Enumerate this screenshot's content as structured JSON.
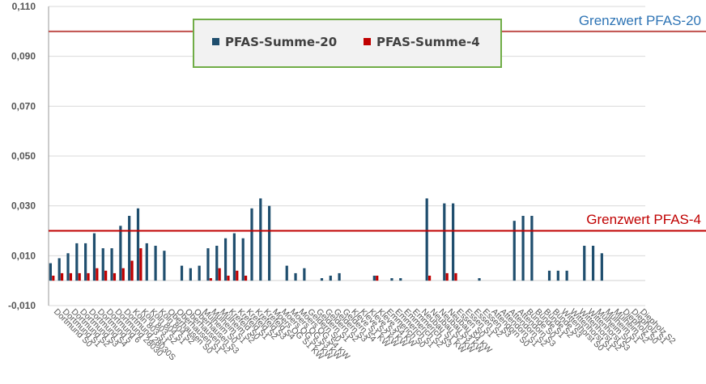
{
  "chart_data": {
    "type": "bar",
    "title": "",
    "xlabel": "",
    "ylabel": "",
    "ylim": [
      -0.01,
      0.11
    ],
    "yticks": [
      "0,110",
      "0,090",
      "0,070",
      "0,050",
      "0,030",
      "0,010",
      "-0,010"
    ],
    "ytick_values": [
      0.11,
      0.09,
      0.07,
      0.05,
      0.03,
      0.01,
      -0.01
    ],
    "grid": "horizontal",
    "legend_position": "top-center",
    "categories": [
      "Dortmund S0",
      "Dortmund S1",
      "Dortmund S2",
      "Dortmund S3",
      "Dortmund S4",
      "Dortmund 5",
      "Dortmund 6",
      "Dortmund 28030",
      "Dortmund 28030S",
      "Köln 803 S1",
      "Köln 803 S2",
      "Köln 804 S1",
      "Köln 804 S2",
      "Oberhausen S0",
      "Oberhausen S1",
      "Oberhausen S2",
      "Oberhausen S3",
      "Mülheim S0",
      "Mülheim S1",
      "Mülheim S2",
      "Krefeld S0",
      "Krefeld S1",
      "Krefeld S2",
      "Krefeld S3",
      "Krefeld S4",
      "Moers OG S1 KW",
      "Moers OG S2 KW",
      "Moers OG S3 KW",
      "Moers OG S4 KW",
      "Geldern S0",
      "Geldern S1",
      "Geldern S2",
      "Geldern S3",
      "Geldern S4",
      "Kleve S1 KW",
      "Kleve S2 KW",
      "Kleve S3 KW",
      "Kleve S4 KW",
      "Emmerich S0",
      "Emmerich S1",
      "Emmerich S2",
      "Emmerich S3",
      "Neubau S1 KW",
      "Neubau S2 KW",
      "Neubau S3 KW",
      "Neubau S4 KW",
      "Essen S0",
      "Essen S1",
      "Essen S2",
      "Essen S3",
      "Attendorn S0",
      "Attendorn S1",
      "Attendorn S2",
      "Attendorn S3",
      "Bünde S0",
      "Bünde S1",
      "Bünde S2",
      "Bünde S3",
      "Wittenhorst S0",
      "Wittenhorst S1",
      "Wittenhorst S2",
      "Wittenhorst S3",
      "Mülheim S0",
      "Mülheim S1",
      "Mülheim S2",
      "Diepholz S0",
      "Diepholz S1",
      "Diepholz S2"
    ],
    "series": [
      {
        "name": "PFAS-Summe-20",
        "color": "#1f4e6e",
        "values": [
          0.007,
          0.009,
          0.011,
          0.015,
          0.015,
          0.019,
          0.013,
          0.013,
          0.022,
          0.026,
          0.029,
          0.015,
          0.014,
          0.012,
          0.0,
          0.006,
          0.005,
          0.006,
          0.013,
          0.014,
          0.017,
          0.019,
          0.017,
          0.029,
          0.033,
          0.03,
          0.0,
          0.006,
          0.003,
          0.005,
          0.0,
          0.001,
          0.002,
          0.003,
          0.0,
          0.0,
          0.0,
          0.002,
          0.0,
          0.001,
          0.001,
          0.0,
          0.0,
          0.033,
          0.0,
          0.031,
          0.031,
          0.0,
          0.0,
          0.001,
          0.0,
          0.0,
          0.0,
          0.024,
          0.026,
          0.026,
          0.0,
          0.004,
          0.004,
          0.004,
          0.0,
          0.014,
          0.014,
          0.011,
          0.0,
          0.0,
          0.0,
          0.0
        ]
      },
      {
        "name": "PFAS-Summe-4",
        "color": "#c00000",
        "values": [
          0.002,
          0.003,
          0.003,
          0.003,
          0.003,
          0.005,
          0.004,
          0.003,
          0.005,
          0.008,
          0.013,
          0.0,
          0.0,
          0.0,
          0.0,
          0.0,
          0.0,
          0.0,
          0.001,
          0.005,
          0.002,
          0.004,
          0.002,
          0.0,
          0.0,
          0.0,
          0.0,
          0.0,
          0.0,
          0.0,
          0.0,
          0.0,
          0.0,
          0.0,
          0.0,
          0.0,
          0.0,
          0.002,
          0.0,
          0.0,
          0.0,
          0.0,
          0.0,
          0.002,
          0.0,
          0.003,
          0.003,
          0.0,
          0.0,
          0.0,
          0.0,
          0.0,
          0.0,
          0.0,
          0.0,
          0.0,
          0.0,
          0.0,
          0.0,
          0.0,
          0.0,
          0.0,
          0.0,
          0.0,
          0.0,
          0.0,
          0.0,
          0.0
        ]
      }
    ],
    "reference_lines": [
      {
        "label": "Grenzwert PFAS-20",
        "value": 0.1,
        "color": "#c0504d",
        "label_color": "#2e74b5"
      },
      {
        "label": "Grenzwert PFAS-4",
        "value": 0.02,
        "color": "#c00000",
        "label_color": "#c00000"
      }
    ],
    "legend_box_color": "#70ad47",
    "legend_fill": "#f2f2f2"
  }
}
